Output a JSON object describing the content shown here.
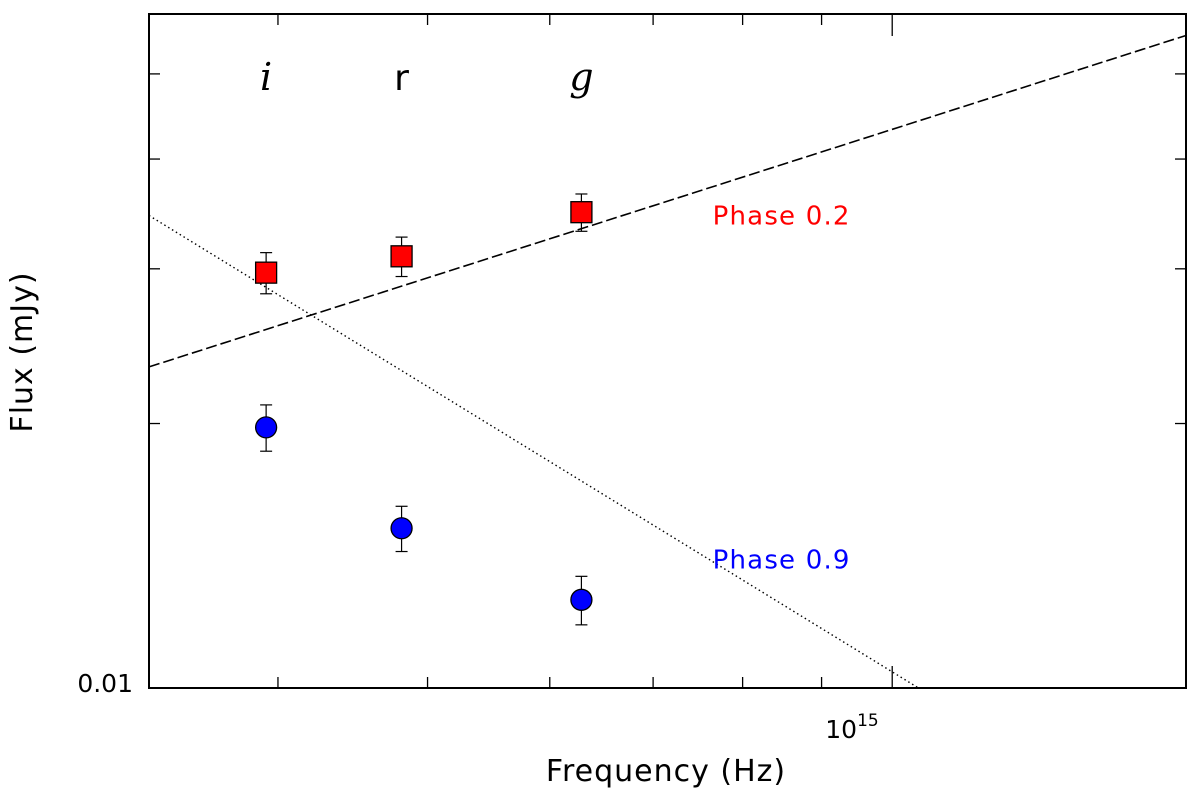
{
  "chart_data": {
    "type": "scatter",
    "title": "",
    "xlabel": "Frequency (Hz)",
    "ylabel": "Flux (mJy)",
    "xscale": "log",
    "yscale": "log",
    "xlim": [
      330000000000000.0,
      1550000000000000.0
    ],
    "ylim": [
      0.01,
      0.0585
    ],
    "x_tick_label": {
      "base": "10",
      "exponent": "15",
      "value": 1000000000000000.0
    },
    "y_tick_label": {
      "text": "0.01",
      "value": 0.01
    },
    "band_labels": [
      {
        "text": "i",
        "x": 393000000000000.0,
        "italic": true
      },
      {
        "text": "r",
        "x": 481000000000000.0,
        "italic": false
      },
      {
        "text": "g",
        "x": 629000000000000.0,
        "italic": true
      }
    ],
    "series": [
      {
        "name": "Phase 0.2",
        "color": "#ff0000",
        "marker": "square",
        "line_style": "dashed",
        "x": [
          393000000000000.0,
          481000000000000.0,
          629000000000000.0
        ],
        "y": [
          0.0297,
          0.031,
          0.0348
        ],
        "yerr": [
          0.0016,
          0.0016,
          0.0017
        ],
        "fit": {
          "x": [
            330000000000000.0,
            1550000000000000.0
          ],
          "y": [
            0.0232,
            0.0553
          ]
        }
      },
      {
        "name": "Phase 0.9",
        "color": "#0000ff",
        "marker": "circle",
        "line_style": "dotted",
        "x": [
          393000000000000.0,
          481000000000000.0,
          629000000000000.0
        ],
        "y": [
          0.0198,
          0.0152,
          0.0126
        ],
        "yerr": [
          0.0012,
          0.0009,
          0.0008
        ],
        "fit": {
          "x": [
            330000000000000.0,
            1040000000000000.0
          ],
          "y": [
            0.0345,
            0.01
          ]
        }
      }
    ],
    "legend": [
      {
        "text": "Phase 0.2",
        "color": "#ff0000",
        "at_x": 765000000000000.0,
        "at_y": 0.0345
      },
      {
        "text": "Phase 0.9",
        "color": "#0000ff",
        "at_x": 765000000000000.0,
        "at_y": 0.014
      }
    ]
  }
}
